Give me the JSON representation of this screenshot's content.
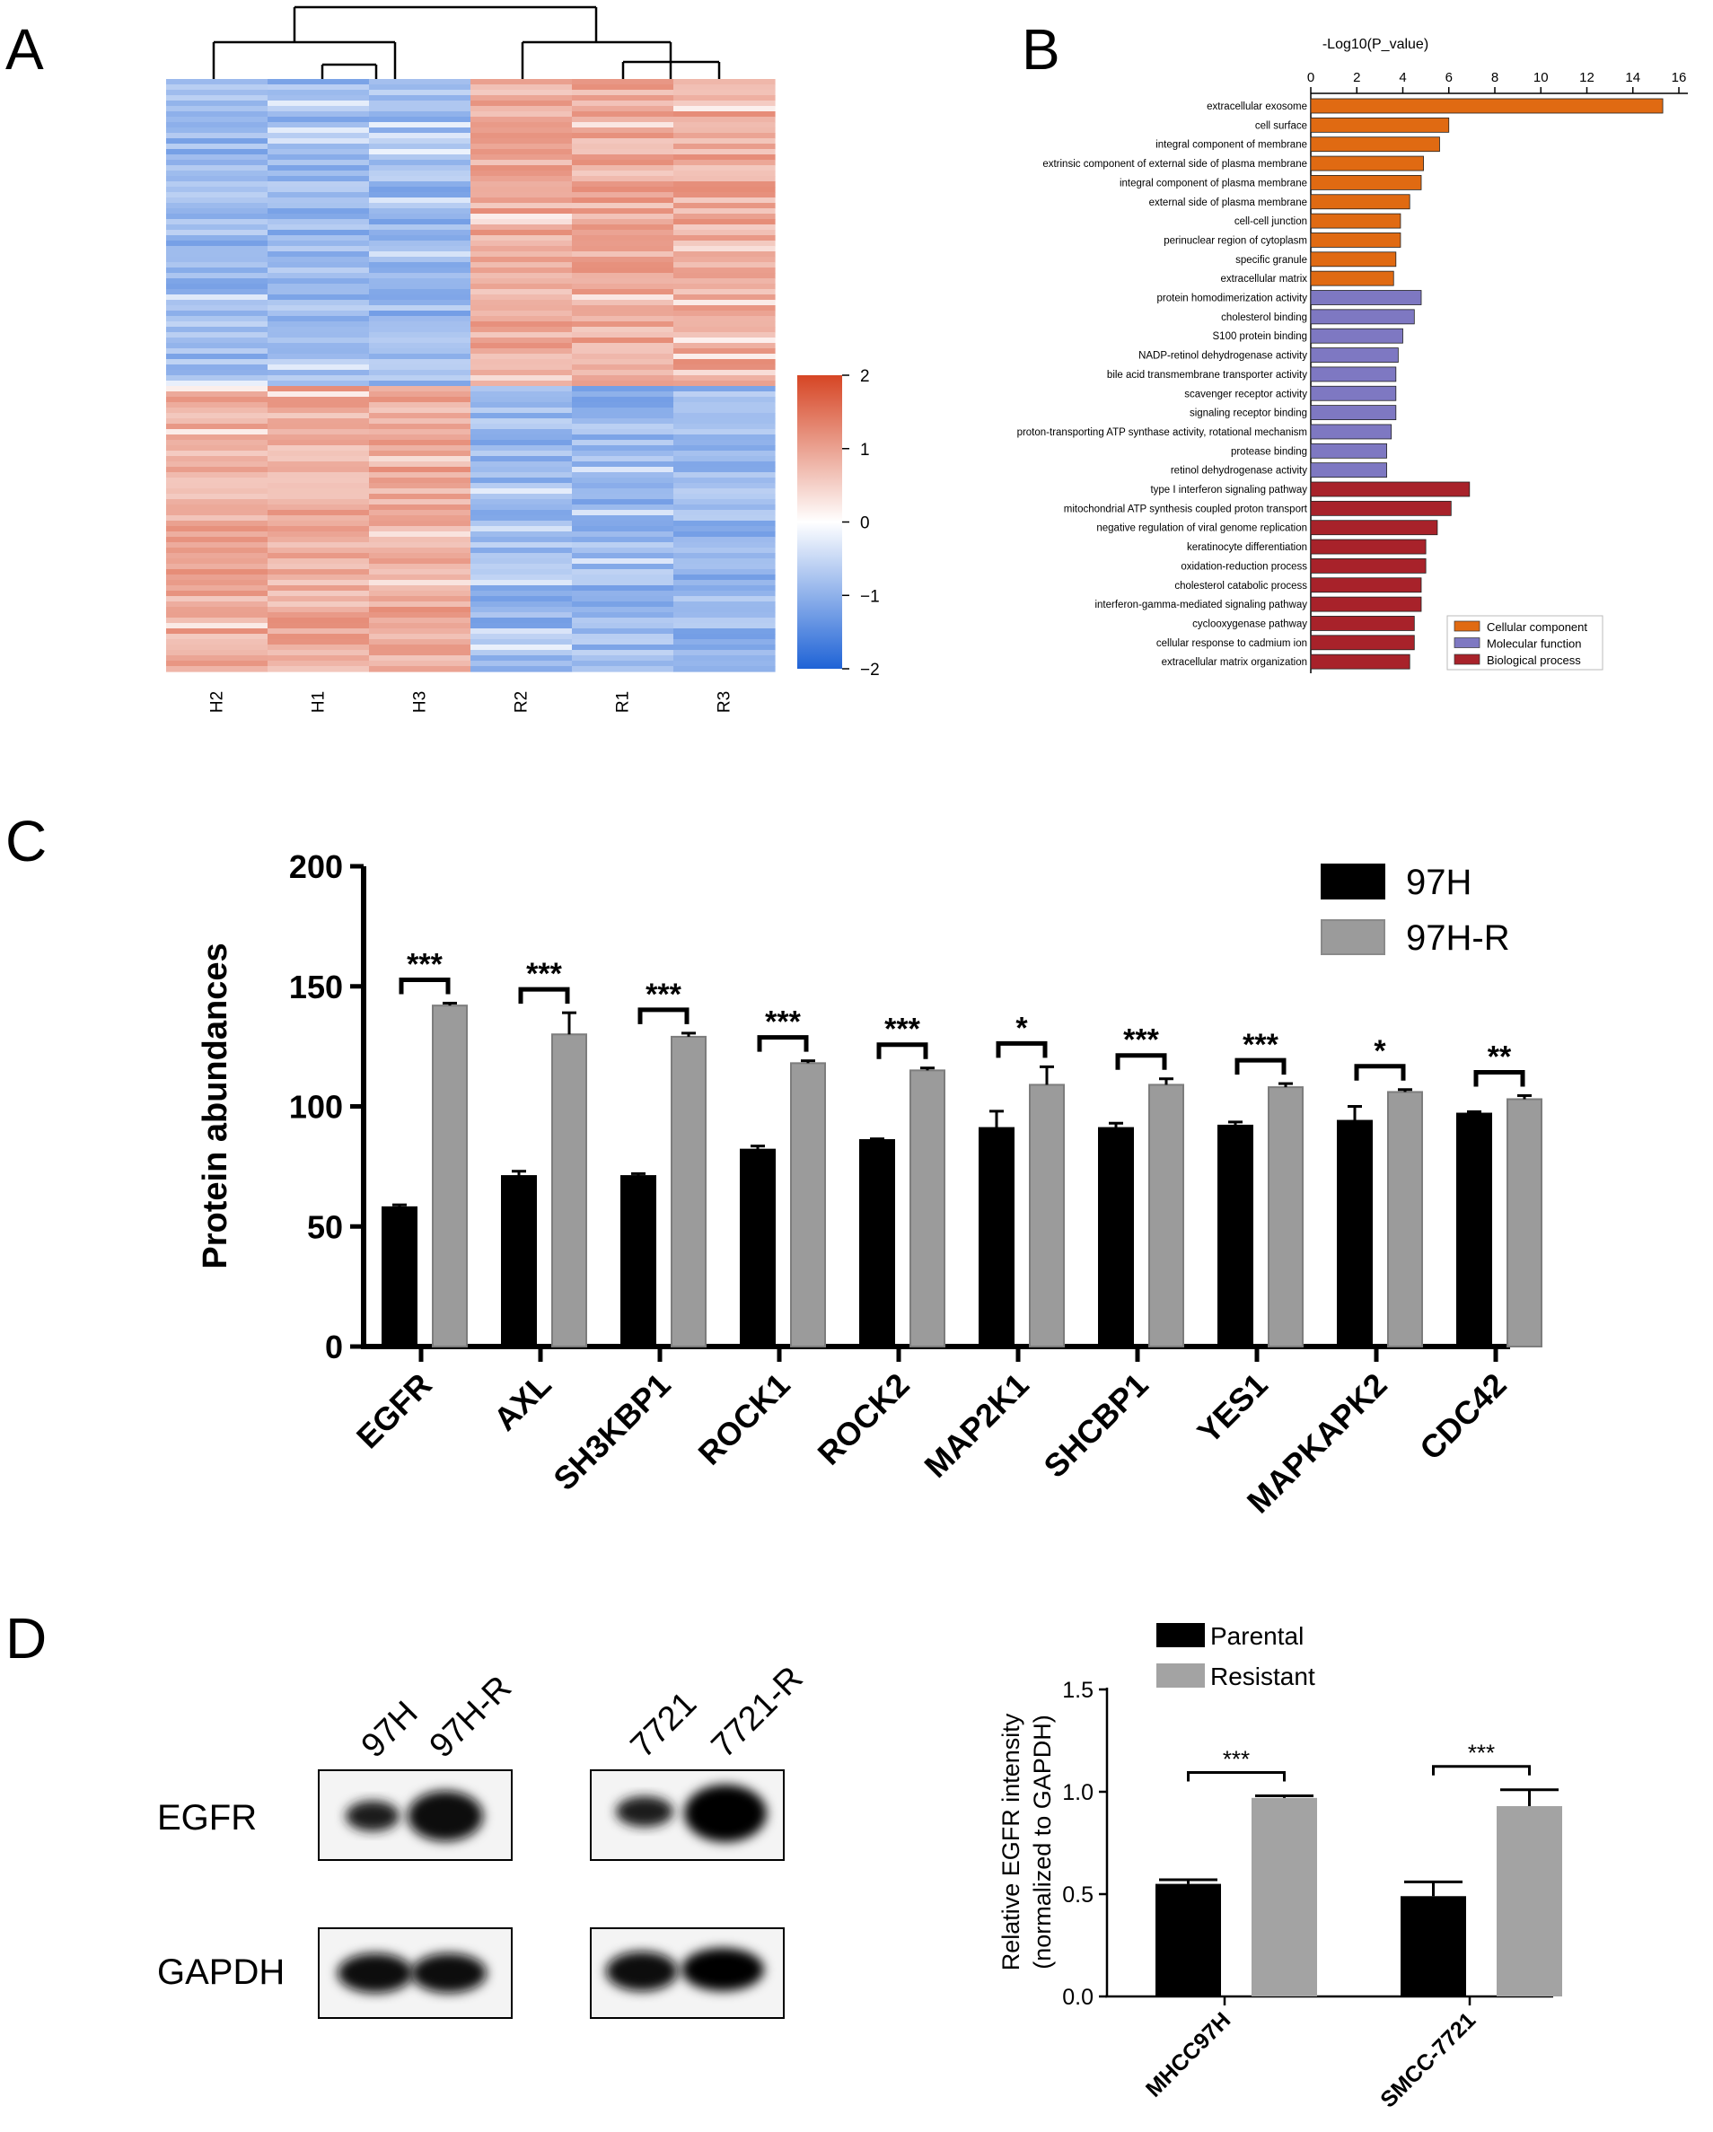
{
  "panels": {
    "a": "A",
    "b": "B",
    "c": "C",
    "d": "D"
  },
  "chart_data": [
    {
      "type": "heatmap",
      "panel": "A",
      "columns": [
        "H2",
        "H1",
        "H3",
        "R2",
        "R1",
        "R3"
      ],
      "colorbar_ticks": [
        "2",
        "1",
        "0",
        "−1",
        "−2"
      ],
      "colorbar_range": [
        -2,
        2
      ],
      "colors": {
        "low": "#1f63d6",
        "mid": "#ffffff",
        "high": "#d64524"
      },
      "clusters": "Upper block: H samples low, R samples high; lower block: H samples high, R samples low"
    },
    {
      "type": "bar",
      "orientation": "horizontal",
      "panel": "B",
      "title": "-Log10(P_value)",
      "xlim": [
        0,
        16
      ],
      "x_ticks": [
        "0",
        "2",
        "4",
        "6",
        "8",
        "10",
        "12",
        "14",
        "16"
      ],
      "legend": [
        {
          "name": "Cellular component",
          "color": "#e06a12"
        },
        {
          "name": "Molecular function",
          "color": "#7e78c2"
        },
        {
          "name": "Biological process",
          "color": "#a8222a"
        }
      ],
      "categories": [
        "extracellular exosome",
        "cell surface",
        "integral component of membrane",
        "extrinsic component of external side of plasma membrane",
        "integral component of plasma membrane",
        "external side of plasma membrane",
        "cell-cell junction",
        "perinuclear region of cytoplasm",
        "specific granule",
        "extracellular matrix",
        "protein homodimerization activity",
        "cholesterol binding",
        "S100 protein binding",
        "NADP-retinol dehydrogenase activity",
        "bile acid transmembrane transporter activity",
        "scavenger receptor activity",
        "signaling receptor binding",
        "proton-transporting ATP synthase activity, rotational mechanism",
        "protease binding",
        "retinol dehydrogenase activity",
        "type I interferon signaling pathway",
        "mitochondrial ATP synthesis coupled proton transport",
        "negative regulation of viral genome replication",
        "keratinocyte differentiation",
        "oxidation-reduction process",
        "cholesterol catabolic process",
        "interferon-gamma-mediated signaling pathway",
        "cyclooxygenase pathway",
        "cellular response to cadmium ion",
        "extracellular matrix organization"
      ],
      "values": [
        15.3,
        6.0,
        5.6,
        4.9,
        4.8,
        4.3,
        3.9,
        3.9,
        3.7,
        3.6,
        4.8,
        4.5,
        4.0,
        3.8,
        3.7,
        3.7,
        3.7,
        3.5,
        3.3,
        3.3,
        6.9,
        6.1,
        5.5,
        5.0,
        5.0,
        4.8,
        4.8,
        4.5,
        4.5,
        4.3
      ],
      "groups": [
        0,
        0,
        0,
        0,
        0,
        0,
        0,
        0,
        0,
        0,
        1,
        1,
        1,
        1,
        1,
        1,
        1,
        1,
        1,
        1,
        2,
        2,
        2,
        2,
        2,
        2,
        2,
        2,
        2,
        2
      ]
    },
    {
      "type": "bar",
      "panel": "C",
      "ylabel": "Protein abundances",
      "ylim": [
        0,
        200
      ],
      "y_ticks": [
        "0",
        "50",
        "100",
        "150",
        "200"
      ],
      "categories": [
        "EGFR",
        "AXL",
        "SH3KBP1",
        "ROCK1",
        "ROCK2",
        "MAP2K1",
        "SHCBP1",
        "YES1",
        "MAPKAPK2",
        "CDC42"
      ],
      "series": [
        {
          "name": "97H",
          "color": "#000000",
          "values": [
            58,
            71,
            71,
            82,
            86,
            91,
            91,
            92,
            94,
            97
          ],
          "errors": [
            1,
            2,
            1,
            1.5,
            0.5,
            7,
            2,
            1.5,
            6,
            0.8
          ]
        },
        {
          "name": "97H-R",
          "color": "#9b9b9b",
          "values": [
            142,
            130,
            129,
            118,
            115,
            109,
            109,
            108,
            106,
            103
          ],
          "errors": [
            1,
            9,
            1.5,
            1,
            1,
            7.5,
            2.5,
            1.5,
            1,
            1.5
          ]
        }
      ],
      "significance": [
        "***",
        "***",
        "***",
        "***",
        "***",
        "*",
        "***",
        "***",
        "*",
        "**"
      ]
    },
    {
      "type": "bar",
      "panel": "D",
      "ylabel_lines": [
        "Relative EGFR intensity",
        "(normalized to GAPDH)"
      ],
      "ylim": [
        0,
        1.5
      ],
      "y_ticks": [
        "0.0",
        "0.5",
        "1.0",
        "1.5"
      ],
      "categories": [
        "MHCC97H",
        "SMCC-7721"
      ],
      "series": [
        {
          "name": "Parental",
          "color": "#000000",
          "values": [
            0.55,
            0.49
          ],
          "errors": [
            0.02,
            0.07
          ]
        },
        {
          "name": "Resistant",
          "color": "#a3a3a3",
          "values": [
            0.97,
            0.93
          ],
          "errors": [
            0.01,
            0.08
          ]
        }
      ],
      "significance": [
        "***",
        "***"
      ]
    }
  ],
  "blot": {
    "rows": [
      "EGFR",
      "GAPDH"
    ],
    "group1_lanes": [
      "97H",
      "97H-R"
    ],
    "group2_lanes": [
      "7721",
      "7721-R"
    ]
  }
}
